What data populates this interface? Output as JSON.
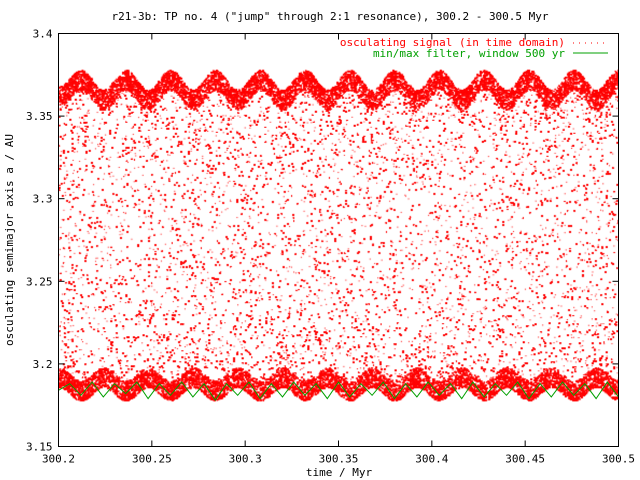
{
  "chart_data": {
    "type": "scatter",
    "title": "r21-3b: TP no. 4 (\"jump\" through 2:1 resonance), 300.2 - 300.5 Myr",
    "xlabel": "time / Myr",
    "ylabel": "osculating semimajor axis a / AU",
    "xlim": [
      300.2,
      300.5
    ],
    "ylim": [
      3.15,
      3.4
    ],
    "xticks": [
      300.2,
      300.25,
      300.3,
      300.35,
      300.4,
      300.45,
      300.5
    ],
    "xtick_labels": [
      "300.2",
      "300.25",
      "300.3",
      "300.35",
      "300.4",
      "300.45",
      "300.5"
    ],
    "yticks": [
      3.15,
      3.2,
      3.25,
      3.3,
      3.35,
      3.4
    ],
    "ytick_labels": [
      "3.15",
      "3.2",
      "3.25",
      "3.3",
      "3.35",
      "3.4"
    ],
    "grid": false,
    "legend_position": "top-right",
    "series": [
      {
        "name": "osculating signal (in time domain)",
        "color": "#ff0000",
        "style": "dots",
        "envelope_upper": [
          3.368,
          3.378,
          3.366,
          3.378,
          3.366,
          3.378,
          3.366,
          3.378,
          3.366,
          3.378,
          3.366,
          3.378,
          3.366,
          3.378,
          3.366,
          3.378,
          3.366,
          3.378,
          3.366,
          3.378,
          3.366,
          3.378,
          3.366,
          3.378,
          3.366,
          3.378
        ],
        "envelope_lower": [
          3.186,
          3.178,
          3.186,
          3.178,
          3.186,
          3.178,
          3.186,
          3.178,
          3.186,
          3.178,
          3.186,
          3.178,
          3.186,
          3.178,
          3.186,
          3.178,
          3.186,
          3.178,
          3.186,
          3.178,
          3.186,
          3.178,
          3.186,
          3.178,
          3.186,
          3.178
        ]
      },
      {
        "name": "min/max filter, window 500 yr",
        "color": "#00a000",
        "style": "line",
        "x": [
          300.2,
          300.206,
          300.212,
          300.218,
          300.224,
          300.23,
          300.236,
          300.242,
          300.248,
          300.254,
          300.26,
          300.266,
          300.272,
          300.278,
          300.284,
          300.29,
          300.296,
          300.302,
          300.308,
          300.314,
          300.32,
          300.326,
          300.332,
          300.338,
          300.344,
          300.35,
          300.356,
          300.362,
          300.368,
          300.374,
          300.38,
          300.386,
          300.392,
          300.398,
          300.404,
          300.41,
          300.416,
          300.422,
          300.428,
          300.434,
          300.44,
          300.446,
          300.452,
          300.458,
          300.464,
          300.47,
          300.476,
          300.482,
          300.488,
          300.494,
          300.5
        ],
        "y": [
          3.184,
          3.188,
          3.181,
          3.189,
          3.18,
          3.188,
          3.182,
          3.189,
          3.179,
          3.188,
          3.181,
          3.189,
          3.18,
          3.188,
          3.178,
          3.188,
          3.181,
          3.189,
          3.179,
          3.188,
          3.18,
          3.189,
          3.181,
          3.188,
          3.179,
          3.189,
          3.18,
          3.188,
          3.181,
          3.189,
          3.179,
          3.188,
          3.18,
          3.189,
          3.181,
          3.188,
          3.179,
          3.189,
          3.18,
          3.188,
          3.181,
          3.189,
          3.179,
          3.188,
          3.18,
          3.189,
          3.181,
          3.188,
          3.179,
          3.189,
          3.18
        ]
      }
    ]
  }
}
